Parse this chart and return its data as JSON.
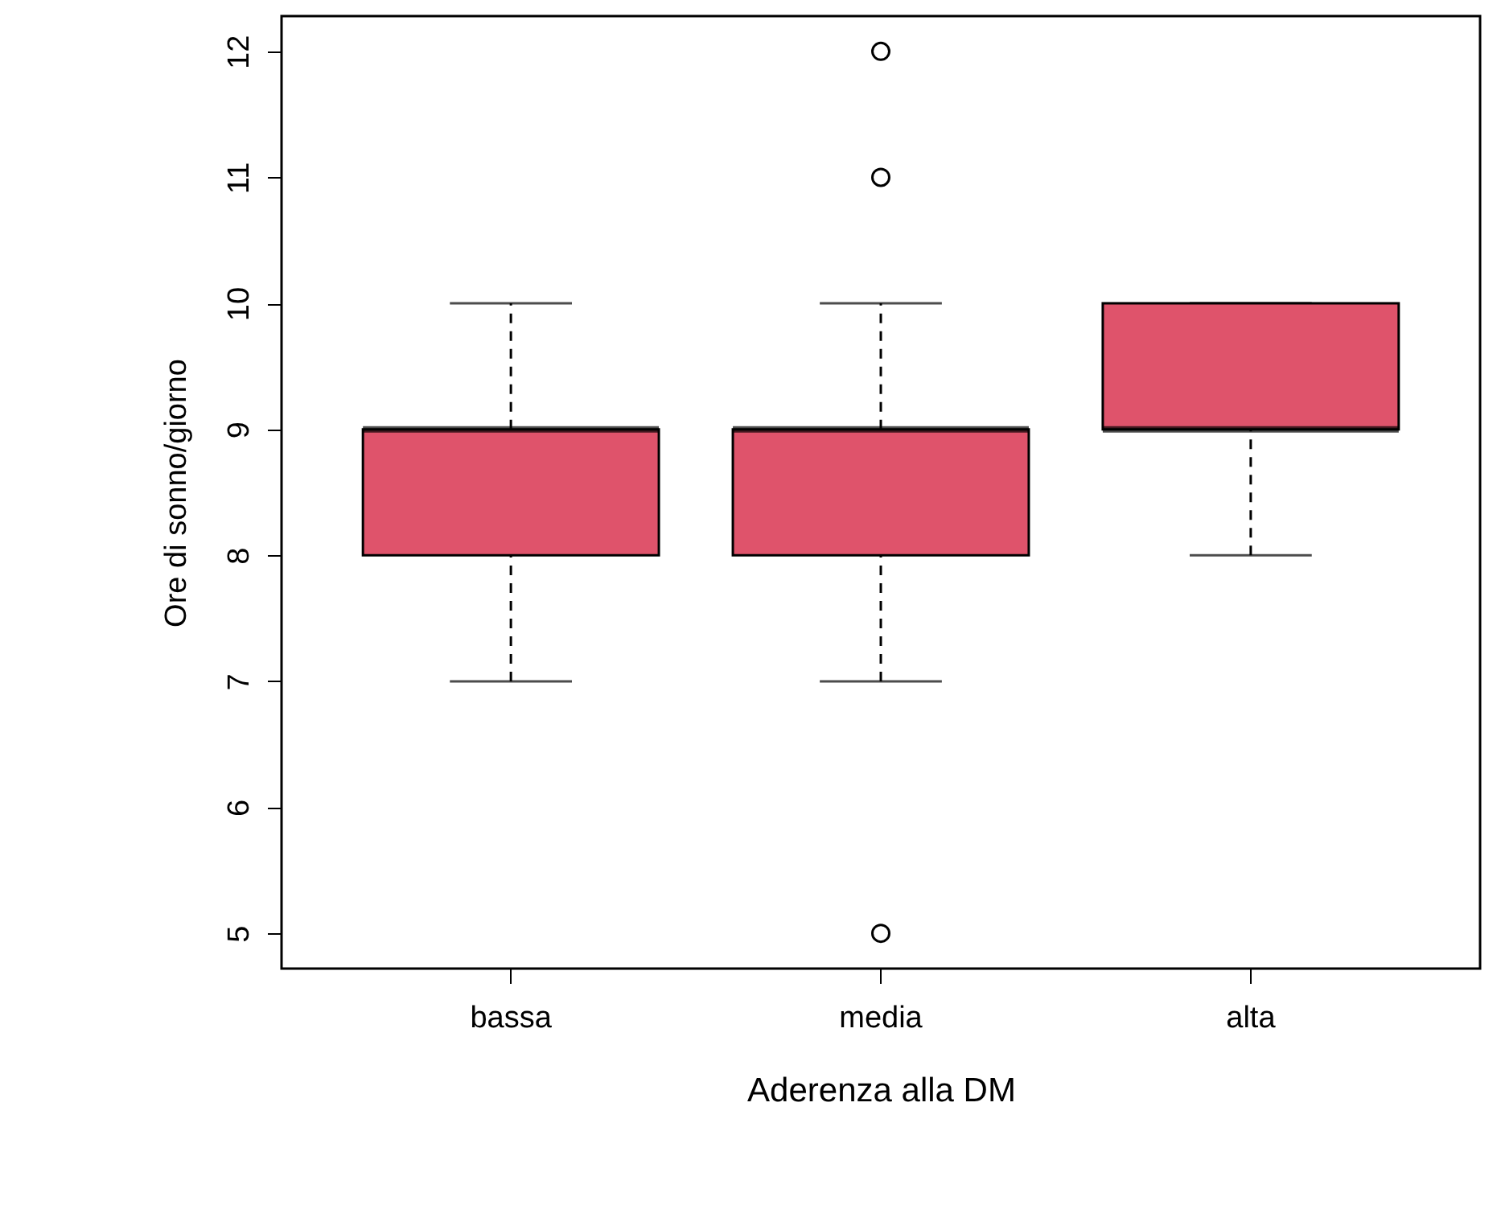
{
  "chart_data": {
    "type": "box",
    "xlabel": "Aderenza alla DM",
    "ylabel": "Ore di sonno/giorno",
    "categories": [
      "bassa",
      "media",
      "alta"
    ],
    "series": [
      {
        "color": "#df536b",
        "boxes": [
          {
            "low": 7,
            "q1": 8,
            "median": 9,
            "q3": 9,
            "high": 10
          },
          {
            "low": 7,
            "q1": 8,
            "median": 9,
            "q3": 9,
            "high": 10,
            "outliers": [
              5,
              11,
              12
            ]
          },
          {
            "low": 8,
            "q1": 9,
            "median": 9,
            "q3": 10,
            "high": 10
          }
        ]
      }
    ],
    "ylim": [
      4.72,
      12.28
    ],
    "yticks": [
      5,
      6,
      7,
      8,
      9,
      10,
      11,
      12
    ]
  }
}
